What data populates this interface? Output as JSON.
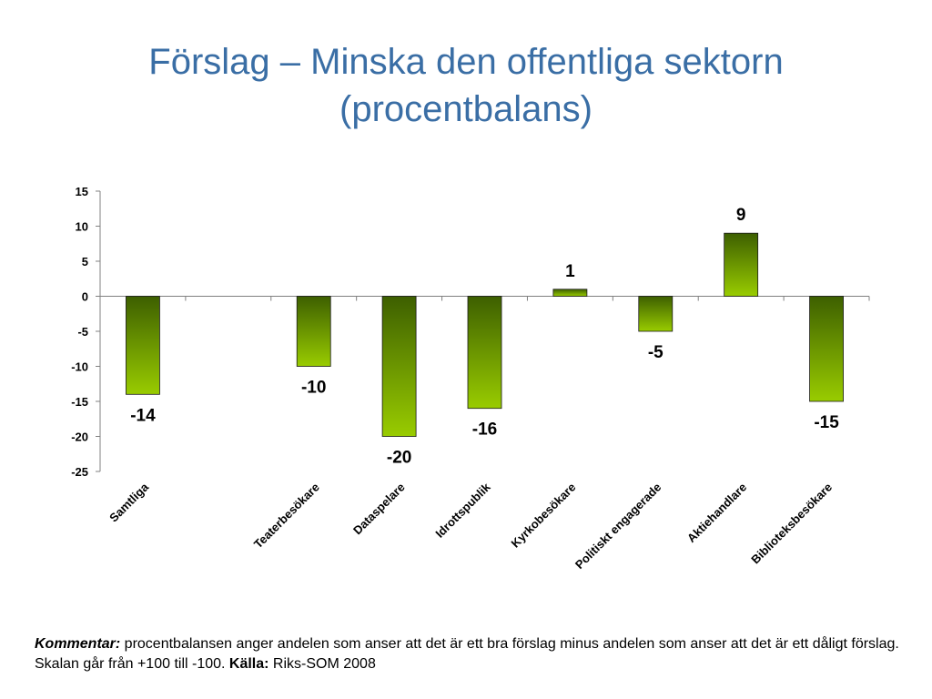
{
  "slide": {
    "title_line1": "Förslag – Minska den offentliga sektorn",
    "title_line2": "(procentbalans)"
  },
  "comment": {
    "label": "Kommentar:",
    "text": " procentbalansen anger andelen som anser att det är ett bra förslag minus andelen som anser att det är ett dåligt förslag. Skalan går från +100 till -100. ",
    "source_label": "Källa:",
    "source": " Riks-SOM 2008"
  },
  "colors": {
    "title": "#3a6ea5",
    "bar_dark": "#3d5f00",
    "bar_light": "#99cc00"
  },
  "chart_data": {
    "type": "bar",
    "categories": [
      "Samtliga",
      "",
      "Teaterbesökare",
      "Dataspelare",
      "Idrottspublik",
      "Kyrkobesökare",
      "Politiskt engagerade",
      "Aktiehandlare",
      "Biblioteksbesökare"
    ],
    "values": [
      -14,
      null,
      -10,
      -20,
      -16,
      1,
      -5,
      9,
      -15
    ],
    "data_labels": [
      "-14",
      "",
      "-10",
      "-20",
      "-16",
      "1",
      "-5",
      "9",
      "-15"
    ],
    "ylim": [
      -25,
      15
    ],
    "yticks": [
      15,
      10,
      5,
      0,
      -5,
      -10,
      -15,
      -20,
      -25
    ],
    "grid": false,
    "title": "",
    "xlabel": "",
    "ylabel": ""
  }
}
